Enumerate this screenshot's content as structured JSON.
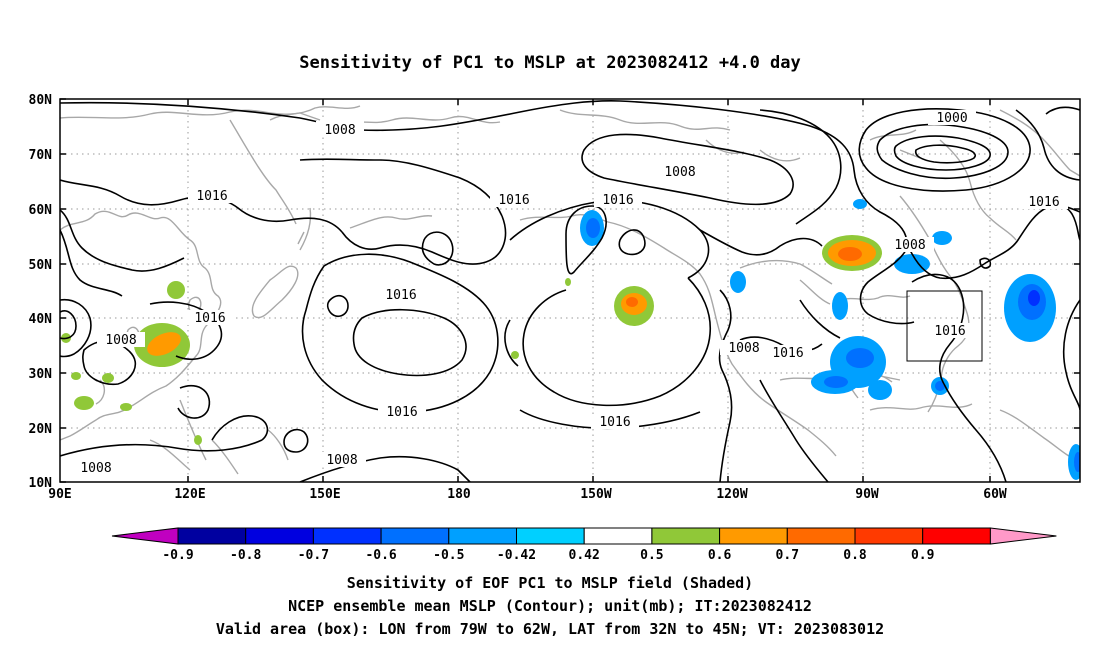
{
  "title": "Sensitivity of PC1 to MSLP at 2023082412 +4.0 day",
  "map": {
    "lon_labels": [
      "90E",
      "120E",
      "150E",
      "180",
      "150W",
      "120W",
      "90W",
      "60W"
    ],
    "lat_labels": [
      "80N",
      "70N",
      "60N",
      "50N",
      "40N",
      "30N",
      "20N",
      "10N"
    ],
    "grid": "dotted",
    "contour_labels": [
      "1008",
      "1016",
      "1008",
      "1016",
      "1016",
      "1016",
      "1008",
      "1016",
      "1008",
      "1008",
      "1016",
      "1000",
      "1008",
      "1016",
      "1016",
      "1008",
      "1016",
      "1016"
    ],
    "valid_box": {
      "lon_min": "79W",
      "lon_max": "62W",
      "lat_min": "32N",
      "lat_max": "45N"
    }
  },
  "colorbar": {
    "labels": [
      "-0.9",
      "-0.8",
      "-0.7",
      "-0.6",
      "-0.5",
      "-0.42",
      "0.42",
      "0.5",
      "0.6",
      "0.7",
      "0.8",
      "0.9"
    ],
    "colors": [
      "#c000c0",
      "#0000a0",
      "#0000e0",
      "#0030ff",
      "#0070ff",
      "#00a0ff",
      "#00d0ff",
      "#ffffff",
      "#90c838",
      "#ff9a00",
      "#ff6a00",
      "#ff3a00",
      "#ff0000",
      "#ff99c8"
    ]
  },
  "footer": {
    "line1": "Sensitivity of EOF PC1 to MSLP field (Shaded)",
    "line2": "NCEP ensemble mean MSLP (Contour); unit(mb); IT:2023082412",
    "line3": "Valid area (box): LON from 79W to 62W, LAT from 32N to 45N; VT: 2023083012"
  }
}
